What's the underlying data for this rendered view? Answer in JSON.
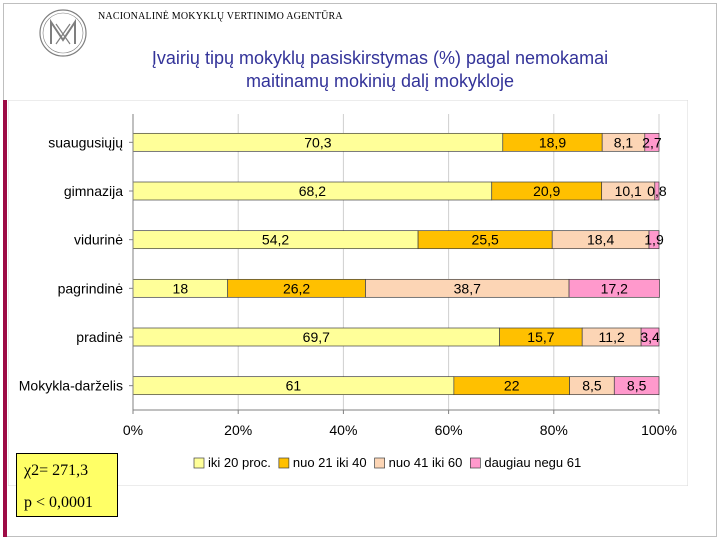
{
  "header": {
    "agency": "NACIONALINĖ MOKYKLŲ VERTINIMO AGENTŪRA",
    "title_line1": "Įvairių tipų mokyklų pasiskirstymas (%) pagal nemokamai",
    "title_line2": "maitinamų mokinių dalį mokykloje"
  },
  "stats": {
    "chi": "χ2= 271,3",
    "p": "p < 0,0001"
  },
  "colors": {
    "title": "#333399",
    "accent_bar": "#9d0b45",
    "stat_box": "#ffff66"
  },
  "chart_data": {
    "type": "bar",
    "orientation": "horizontal",
    "stacked": true,
    "percent": true,
    "categories": [
      "suaugusiųjų",
      "gimnazija",
      "vidurinė",
      "pagrindinė",
      "pradinė",
      "Mokykla-darželis"
    ],
    "series": [
      {
        "name": "iki 20 proc.",
        "color": "#ffff99",
        "values": [
          70.3,
          68.2,
          54.2,
          18,
          69.7,
          61
        ],
        "labels": [
          "70,3",
          "68,2",
          "54,2",
          "18",
          "69,7",
          "61"
        ]
      },
      {
        "name": "nuo 21 iki 40",
        "color": "#ffc000",
        "values": [
          18.9,
          20.9,
          25.5,
          26.2,
          15.7,
          22
        ],
        "labels": [
          "18,9",
          "20,9",
          "25,5",
          "26,2",
          "15,7",
          "22"
        ]
      },
      {
        "name": "nuo 41 iki 60",
        "color": "#fcd5b5",
        "values": [
          8.1,
          10.1,
          18.4,
          38.7,
          11.2,
          8.5
        ],
        "labels": [
          "8,1",
          "10,1",
          "18,4",
          "38,7",
          "11,2",
          "8,5"
        ]
      },
      {
        "name": "daugiau negu 61",
        "color": "#ff99cc",
        "values": [
          2.7,
          0.8,
          1.9,
          17.2,
          3.4,
          8.5
        ],
        "labels": [
          "2,7",
          "0,8",
          "1,9",
          "17,2",
          "3,4",
          "8,5"
        ]
      }
    ],
    "xlim": [
      0,
      100
    ],
    "xticks": [
      "0%",
      "20%",
      "40%",
      "60%",
      "80%",
      "100%"
    ],
    "title": "",
    "xlabel": "",
    "ylabel": "",
    "grid": true,
    "legend_position": "bottom"
  }
}
